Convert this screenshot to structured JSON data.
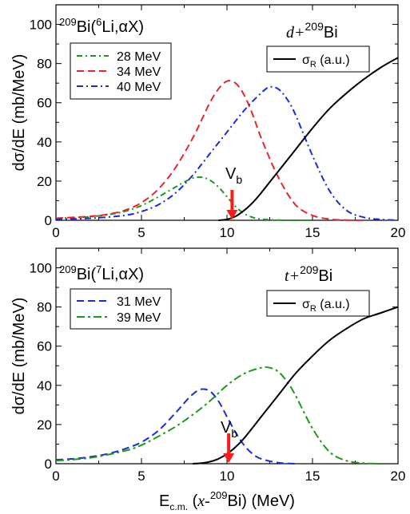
{
  "chart_data": [
    {
      "type": "line",
      "title_parts": {
        "pre": "209",
        "mid": "Bi(",
        "sup": "6",
        "post": "Li,αX)"
      },
      "reaction": {
        "pre": "d+",
        "sup": "209",
        "post": "Bi"
      },
      "ylabel": "dσ/dE (mb/MeV)",
      "xlim": [
        0,
        20
      ],
      "ylim": [
        0,
        110
      ],
      "xticks": [
        0,
        5,
        10,
        15,
        20
      ],
      "yticks": [
        0,
        20,
        40,
        60,
        80,
        100
      ],
      "barrier": {
        "label": "V",
        "sub": "b",
        "x": 10.3
      },
      "series": [
        {
          "name": "28 MeV",
          "color": "#1a9a1a",
          "dash": "7,4,2,4",
          "x": [
            0,
            1,
            2,
            3,
            4,
            5,
            6,
            7,
            7.5,
            8,
            8.5,
            9,
            9.5,
            10,
            10.5,
            11,
            11.5,
            12,
            13,
            14,
            15
          ],
          "y": [
            1,
            1.3,
            1.8,
            2.8,
            4.5,
            7.5,
            12,
            17,
            19.5,
            21.5,
            22,
            20.5,
            17,
            12,
            7,
            3.5,
            1.5,
            0.6,
            0.1,
            0,
            0
          ]
        },
        {
          "name": "34 MeV",
          "color": "#e8262a",
          "dash": "9,5",
          "x": [
            0,
            2,
            3,
            4,
            5,
            6,
            7,
            8,
            8.5,
            9,
            9.5,
            10,
            10.5,
            11,
            11.5,
            12,
            13,
            14,
            15,
            16,
            17,
            18
          ],
          "y": [
            1,
            2,
            3,
            5,
            9,
            16,
            27,
            42,
            51,
            60,
            67,
            71,
            70,
            64,
            54,
            42,
            22,
            8,
            2.5,
            0.6,
            0.1,
            0
          ]
        },
        {
          "name": "40 MeV",
          "color": "#1b2bd6",
          "dash": "8,4,2,4",
          "x": [
            0,
            2,
            4,
            5,
            6,
            7,
            8,
            9,
            10,
            11,
            12,
            12.5,
            13,
            13.5,
            14,
            15,
            16,
            17,
            18,
            19,
            20
          ],
          "y": [
            0.5,
            1,
            2.5,
            4.5,
            8,
            14,
            23,
            34,
            45,
            56,
            65,
            68,
            67,
            62,
            54,
            33,
            15,
            5,
            1.5,
            0.4,
            0
          ]
        },
        {
          "name": "σ_R (a.u.)",
          "label_main": "σ",
          "label_sub": "R",
          "label_post": " (a.u.)",
          "color": "#000000",
          "dash": "",
          "x": [
            9.5,
            10,
            10.5,
            11,
            11.5,
            12,
            13,
            14,
            15,
            16,
            17,
            18,
            19,
            20
          ],
          "y": [
            0,
            0.5,
            2,
            5,
            9,
            14,
            25,
            36,
            47,
            57,
            65,
            72,
            78,
            83
          ]
        }
      ]
    },
    {
      "type": "line",
      "title_parts": {
        "pre": "209",
        "mid": "Bi(",
        "sup": "7",
        "post": "Li,αX)"
      },
      "reaction": {
        "pre": "t+",
        "sup": "209",
        "post": "Bi"
      },
      "ylabel": "dσ/dE (mb/MeV)",
      "xlabel_parts": {
        "pre": "E",
        "sub": "c.m.",
        "mid": " (",
        "ital": "x-",
        "sup": "209",
        "post": "Bi) (MeV)"
      },
      "xlim": [
        0,
        20
      ],
      "ylim": [
        0,
        110
      ],
      "xticks": [
        0,
        5,
        10,
        15,
        20
      ],
      "yticks": [
        0,
        20,
        40,
        60,
        80,
        100
      ],
      "barrier": {
        "label": "V",
        "sub": "b",
        "x": 10.1
      },
      "series": [
        {
          "name": "31 MeV",
          "color": "#1b2bd6",
          "dash": "9,5",
          "x": [
            0,
            1,
            2,
            3,
            4,
            5,
            6,
            7,
            7.5,
            8,
            8.5,
            9,
            9.5,
            10,
            10.5,
            11,
            11.5,
            12,
            13,
            14
          ],
          "y": [
            2,
            2.5,
            3.5,
            5,
            7.5,
            11,
            17,
            26,
            31,
            35.5,
            38,
            37,
            32,
            24,
            16,
            9.5,
            5,
            2.5,
            0.5,
            0
          ]
        },
        {
          "name": "39 MeV",
          "color": "#1a9a1a",
          "dash": "10,4,3,4",
          "x": [
            0,
            2,
            4,
            5,
            6,
            7,
            8,
            9,
            10,
            11,
            12,
            12.5,
            13,
            13.5,
            14,
            15,
            16,
            17,
            18,
            19
          ],
          "y": [
            1.5,
            3,
            6.5,
            9.5,
            14,
            19,
            25,
            32,
            40,
            46,
            49,
            49,
            47,
            42,
            35,
            18,
            6,
            1.5,
            0.3,
            0
          ]
        },
        {
          "name": "σ_R (a.u.)",
          "label_main": "σ",
          "label_sub": "R",
          "label_post": " (a.u.)",
          "color": "#000000",
          "dash": "",
          "x": [
            8,
            8.5,
            9,
            9.5,
            10,
            10.5,
            11,
            12,
            13,
            14,
            15,
            16,
            17,
            18,
            19,
            20
          ],
          "y": [
            0,
            0.3,
            1,
            2.5,
            5,
            8.5,
            13,
            24,
            35,
            46,
            55,
            63,
            69,
            74,
            77,
            80
          ]
        }
      ]
    }
  ]
}
